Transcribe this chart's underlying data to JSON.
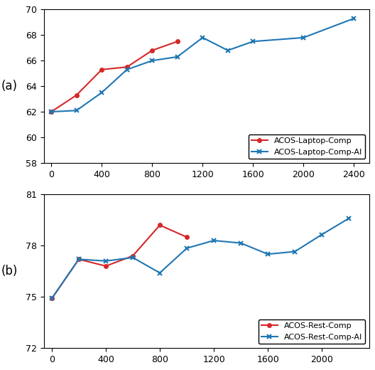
{
  "subplot_a": {
    "red_x": [
      0,
      200,
      400,
      600,
      800,
      1000
    ],
    "red_y": [
      62.0,
      63.3,
      65.3,
      65.5,
      66.8,
      67.5
    ],
    "blue_x": [
      0,
      200,
      400,
      600,
      800,
      1000,
      1200,
      1400,
      1600,
      2000,
      2400
    ],
    "blue_y": [
      62.0,
      62.1,
      63.5,
      65.3,
      66.0,
      66.3,
      67.8,
      66.8,
      67.5,
      67.8,
      69.3
    ],
    "ylim": [
      58,
      70
    ],
    "yticks": [
      58,
      60,
      62,
      64,
      66,
      68,
      70
    ],
    "xticks": [
      0,
      400,
      800,
      1200,
      1600,
      2000,
      2400
    ],
    "xlim": [
      -60,
      2520
    ],
    "red_label": "ACOS-Laptop-Comp",
    "blue_label": "ACOS-Laptop-Comp-AI",
    "panel_label": "(a)"
  },
  "subplot_b": {
    "red_x": [
      0,
      200,
      400,
      600,
      800,
      1000
    ],
    "red_y": [
      74.9,
      77.2,
      76.8,
      77.4,
      79.2,
      78.5
    ],
    "blue_x": [
      0,
      200,
      400,
      600,
      800,
      1000,
      1200,
      1400,
      1600,
      1800,
      2000,
      2200
    ],
    "blue_y": [
      74.9,
      77.2,
      77.1,
      77.3,
      76.4,
      77.85,
      78.3,
      78.15,
      77.5,
      77.65,
      78.65,
      79.6
    ],
    "ylim": [
      72,
      81
    ],
    "yticks": [
      72,
      75,
      78,
      81
    ],
    "xticks": [
      0,
      400,
      800,
      1200,
      1600,
      2000
    ],
    "xlim": [
      -60,
      2350
    ],
    "red_label": "ACOS-Rest-Comp",
    "blue_label": "ACOS-Rest-Comp-AI",
    "panel_label": "(b)"
  },
  "red_color": "#d62728",
  "blue_color": "#1f77b4",
  "figure_size": [
    5.28,
    5.2
  ],
  "dpi": 100
}
